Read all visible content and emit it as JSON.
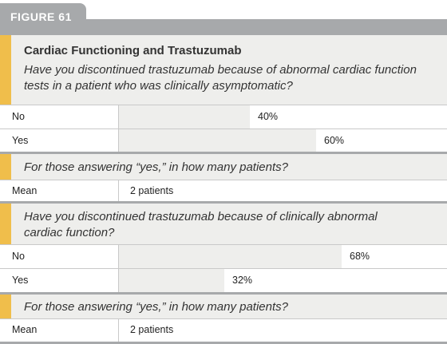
{
  "figure_label": "FIGURE 61",
  "title": "Cardiac Functioning and Trastuzumab",
  "chart_data": [
    {
      "type": "bar",
      "question": "Have you discontinued trastuzumab because of abnormal cardiac function tests in a patient who was clinically asymptomatic?",
      "categories": [
        "No",
        "Yes"
      ],
      "values": [
        40,
        60
      ],
      "value_labels": [
        "40%",
        "60%"
      ],
      "ylim": [
        0,
        100
      ],
      "followup_question": "For those answering “yes,” in how many patients?",
      "followup_label": "Mean",
      "followup_value": "2 patients"
    },
    {
      "type": "bar",
      "question_lines": [
        "Have you discontinued trastuzumab because of clinically abnormal",
        "cardiac function?"
      ],
      "categories": [
        "No",
        "Yes"
      ],
      "values": [
        68,
        32
      ],
      "value_labels": [
        "68%",
        "32%"
      ],
      "ylim": [
        0,
        100
      ],
      "followup_question": "For those answering “yes,” in how many patients?",
      "followup_label": "Mean",
      "followup_value": "2 patients"
    }
  ],
  "colors": {
    "header_gray": "#a7a9ab",
    "accent": "#f0be4b",
    "panel": "#eeeeec"
  }
}
